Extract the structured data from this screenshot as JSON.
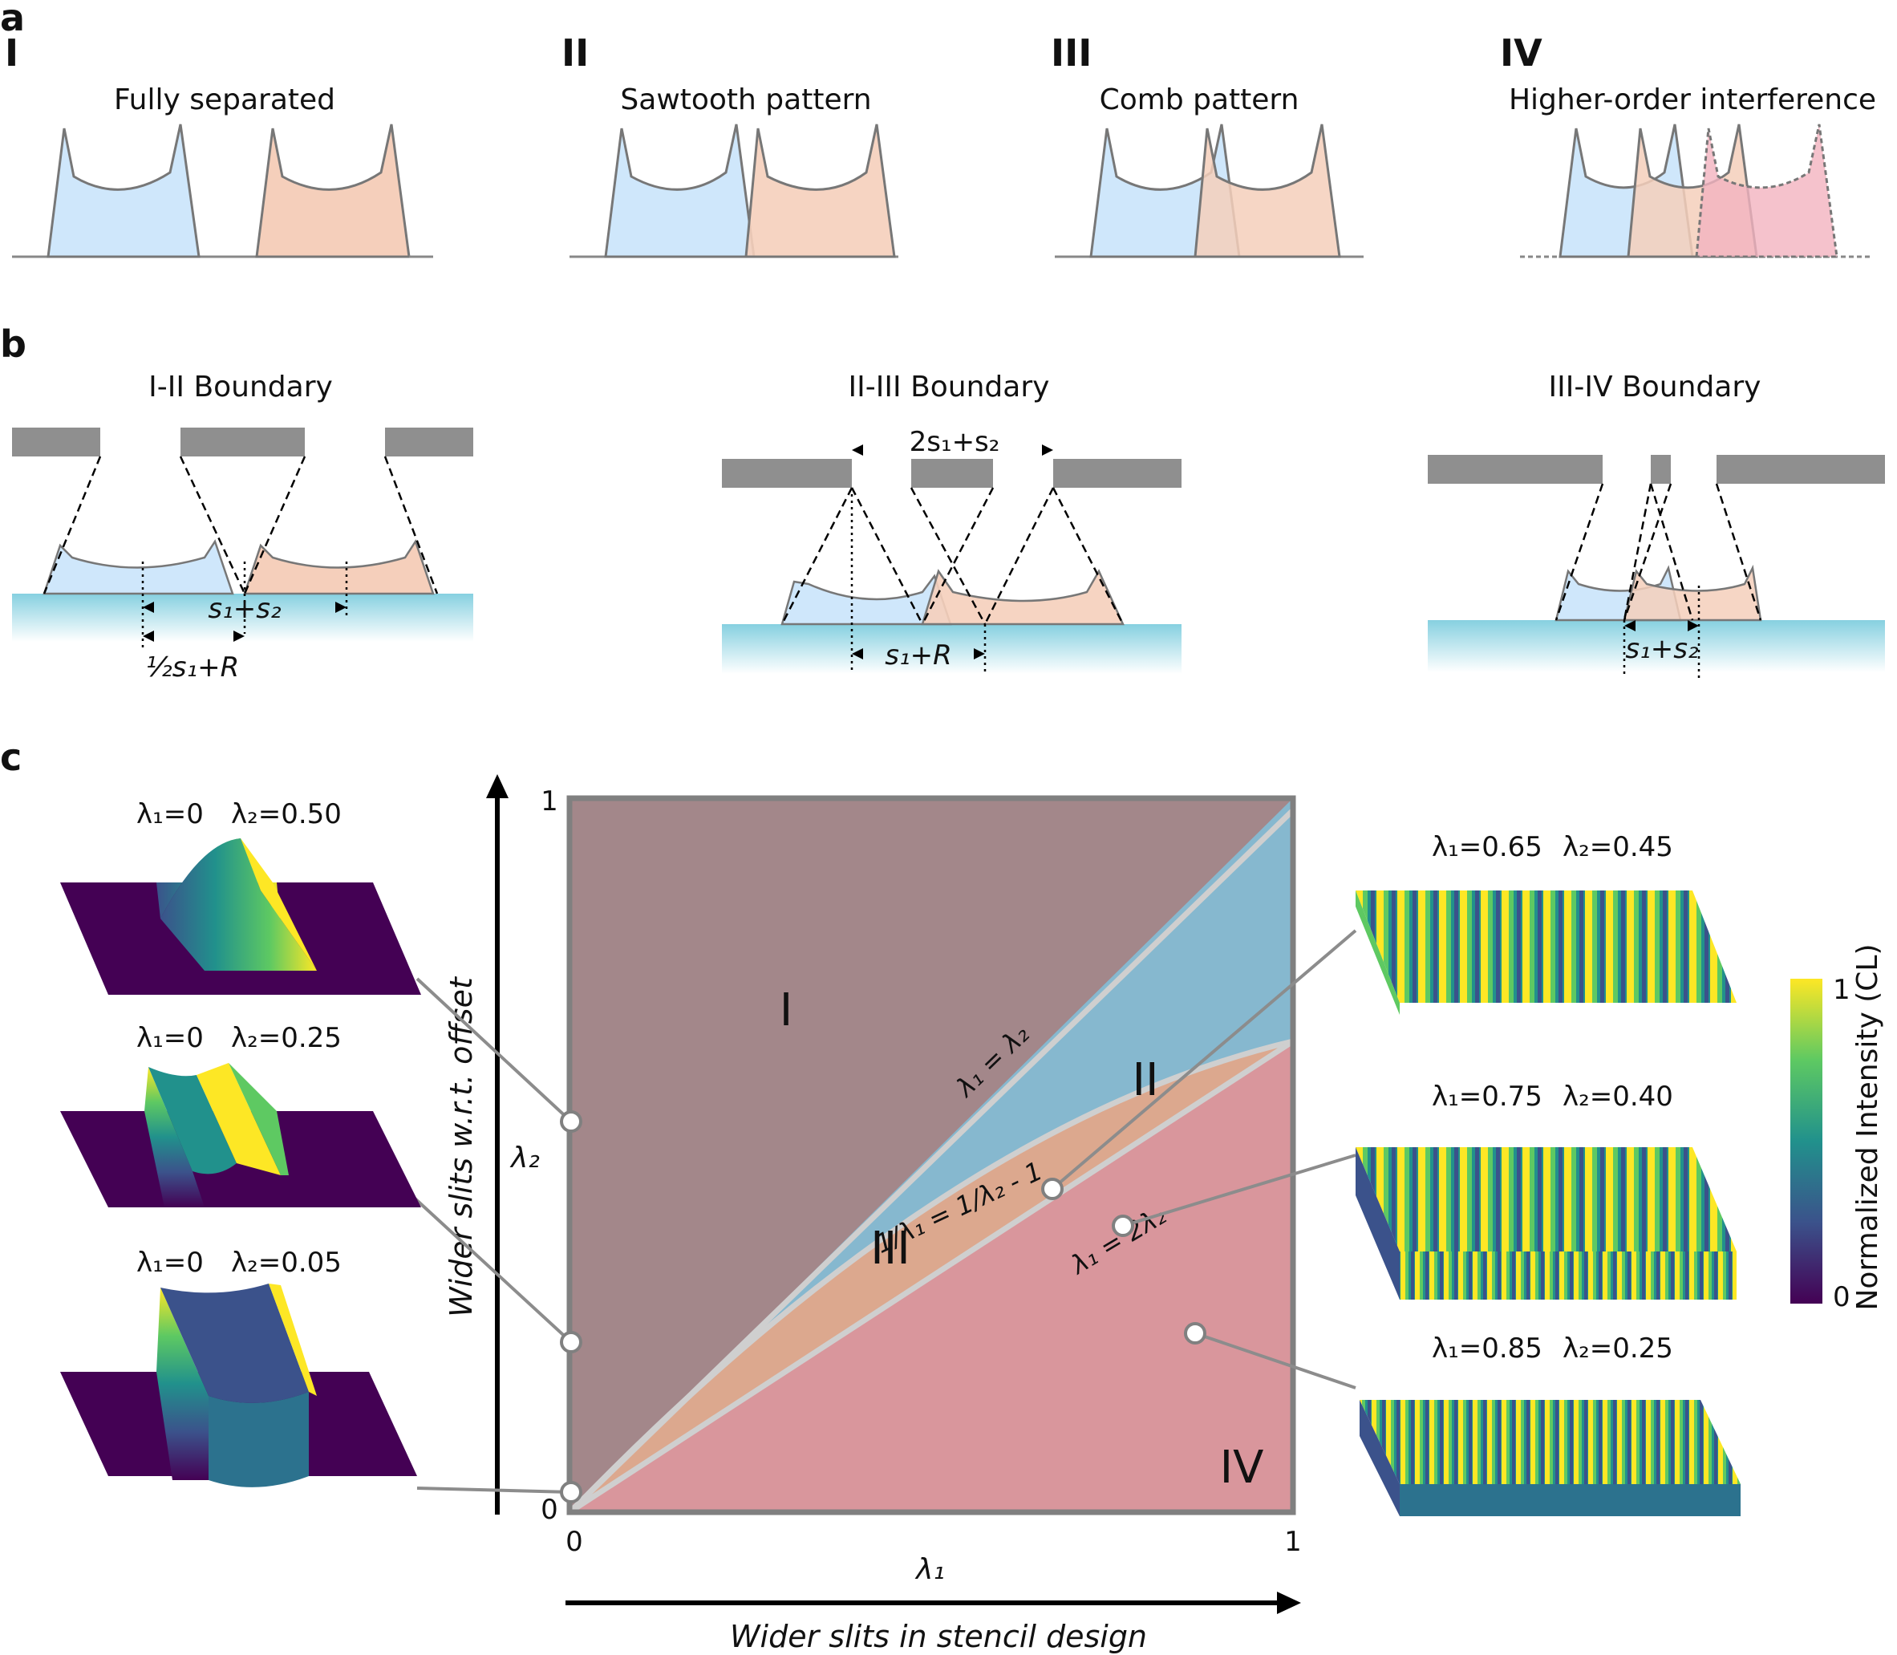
{
  "panel_labels": {
    "a": "a",
    "b": "b",
    "c": "c"
  },
  "panel_a": {
    "cases": [
      {
        "numeral": "I",
        "title": "Fully separated"
      },
      {
        "numeral": "II",
        "title": "Sawtooth pattern"
      },
      {
        "numeral": "III",
        "title": "Comb pattern"
      },
      {
        "numeral": "IV",
        "title": "Higher-order interference"
      }
    ]
  },
  "panel_b": {
    "boundaries": [
      {
        "title": "I-II Boundary",
        "dim_top": "s₁+s₂",
        "dim_bottom": "½s₁+R"
      },
      {
        "title": "II-III Boundary",
        "dim_top": "2s₁+s₂",
        "dim_bottom": "s₁+R"
      },
      {
        "title": "III-IV Boundary",
        "dim_bottom": "s₁+s₂"
      }
    ]
  },
  "panel_c": {
    "y_axis_title": "Wider slits w.r.t. offset",
    "x_axis_title": "Wider slits in stencil design",
    "x_label": "λ₁",
    "y_label": "λ₂",
    "x_ticks": [
      "0",
      "1"
    ],
    "y_ticks": [
      "0",
      "1"
    ],
    "regions": [
      "I",
      "II",
      "III",
      "IV"
    ],
    "curve_labels": {
      "diag": "λ₁ = λ₂",
      "curve": "1/λ₁ = 1/λ₂ - 1",
      "half": "λ₁ = 2λ₂"
    },
    "left_surfaces": [
      {
        "l1": "λ₁=0",
        "l2": "λ₂=0.50"
      },
      {
        "l1": "λ₁=0",
        "l2": "λ₂=0.25"
      },
      {
        "l1": "λ₁=0",
        "l2": "λ₂=0.05"
      }
    ],
    "right_surfaces": [
      {
        "l1": "λ₁=0.65",
        "l2": "λ₂=0.45"
      },
      {
        "l1": "λ₁=0.75",
        "l2": "λ₂=0.40"
      },
      {
        "l1": "λ₁=0.85",
        "l2": "λ₂=0.25"
      }
    ],
    "colorbar": {
      "label": "Normalized Intensity (CL)",
      "max": "1",
      "min": "0"
    },
    "colors": {
      "region_I": "#a3878a",
      "region_II": "#86b8cf",
      "region_III": "#dca88e",
      "region_IV": "#d9969c",
      "profile_blue": "#cfe7fb",
      "profile_orange": "#f5cfbb",
      "profile_pink": "#f3b3bf",
      "stencil_gray": "#8f8f8f",
      "substrate_cyan": "#8ed3e2"
    }
  }
}
